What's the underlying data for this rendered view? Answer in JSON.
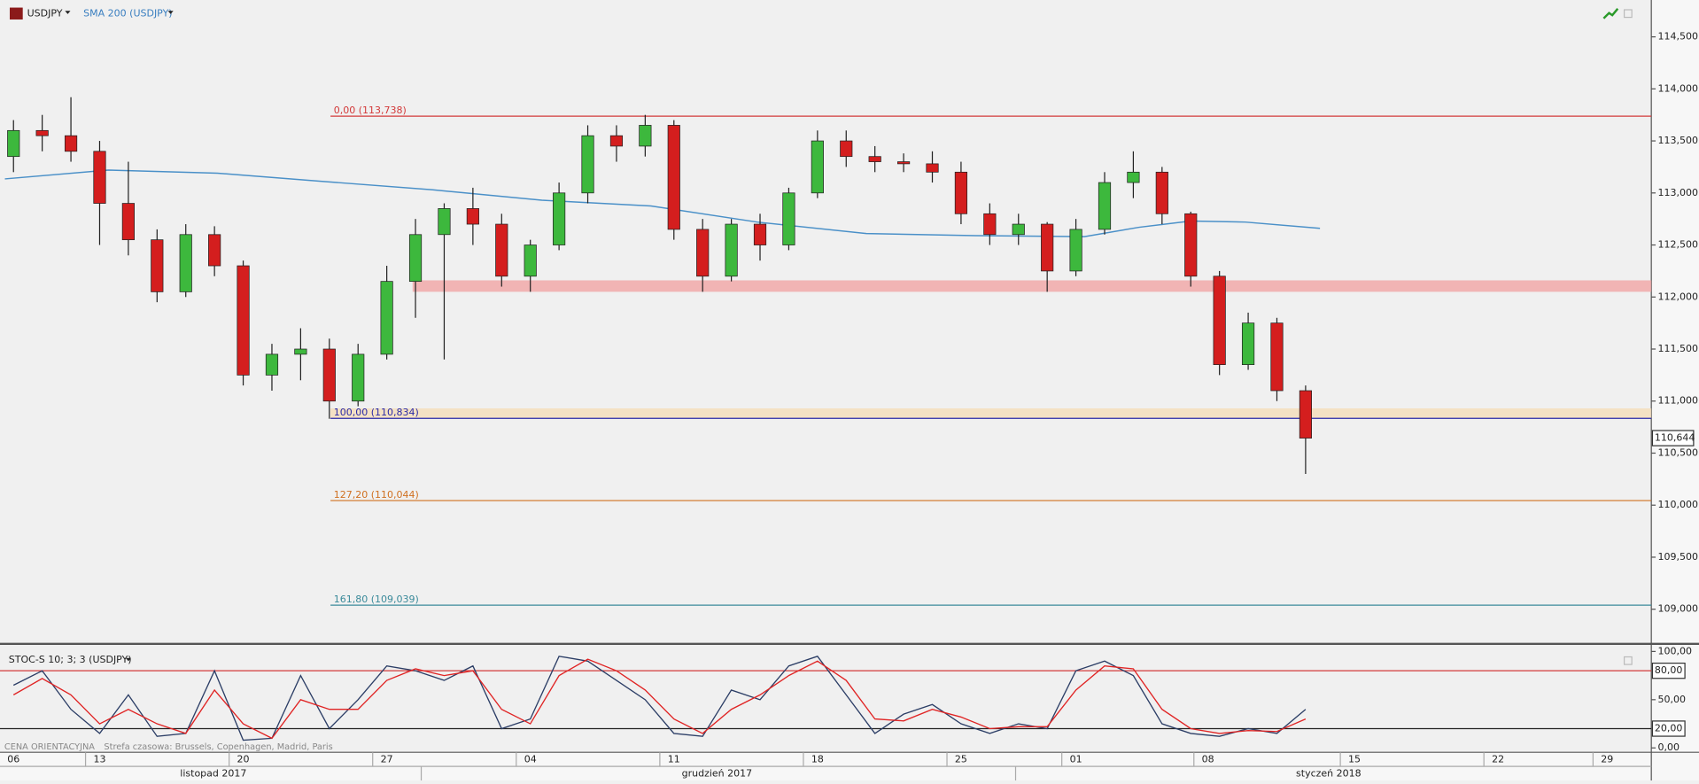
{
  "header": {
    "symbol": "USDJPY",
    "footer": "CENA ORIENTACYJNA",
    "timezone": "Strefa czasowa: Brussels, Copenhagen, Madrid, Paris"
  },
  "chart_data": [
    {
      "type": "candlestick",
      "x": [
        -3,
        -2,
        -1,
        0,
        1,
        2,
        3,
        4,
        5,
        6,
        7,
        8,
        9,
        10,
        11,
        12,
        13,
        14,
        15,
        16,
        17,
        18,
        19,
        20,
        21,
        22,
        23,
        24,
        25,
        26,
        27,
        28,
        29,
        30,
        31,
        32,
        33,
        34,
        35,
        36,
        37,
        38,
        39,
        40,
        41,
        42
      ],
      "open": [
        113.35,
        113.6,
        113.55,
        113.4,
        112.9,
        112.55,
        112.05,
        112.6,
        112.3,
        111.25,
        111.45,
        111.5,
        111.0,
        111.45,
        112.15,
        112.6,
        112.85,
        112.7,
        112.2,
        112.5,
        113.0,
        113.55,
        113.45,
        113.65,
        112.65,
        112.2,
        112.7,
        112.5,
        113.0,
        113.5,
        113.35,
        113.3,
        113.28,
        113.2,
        112.8,
        112.6,
        112.7,
        112.25,
        112.65,
        113.1,
        113.2,
        112.8,
        112.2,
        111.35,
        111.75,
        111.1
      ],
      "high": [
        113.7,
        113.75,
        113.92,
        113.5,
        113.3,
        112.65,
        112.7,
        112.68,
        112.35,
        111.55,
        111.7,
        111.6,
        111.55,
        112.3,
        112.75,
        112.9,
        113.05,
        112.8,
        112.55,
        113.1,
        113.65,
        113.65,
        113.75,
        113.7,
        112.75,
        112.75,
        112.8,
        113.05,
        113.6,
        113.6,
        113.45,
        113.38,
        113.4,
        113.3,
        112.9,
        112.8,
        112.72,
        112.75,
        113.2,
        113.4,
        113.25,
        112.82,
        112.25,
        111.85,
        111.8,
        111.15
      ],
      "low": [
        113.2,
        113.4,
        113.3,
        112.5,
        112.4,
        111.95,
        112.0,
        112.2,
        111.15,
        111.1,
        111.2,
        110.83,
        110.95,
        111.4,
        111.8,
        111.4,
        112.5,
        112.1,
        112.05,
        112.45,
        112.9,
        113.3,
        113.35,
        112.55,
        112.05,
        112.15,
        112.35,
        112.45,
        112.95,
        113.25,
        113.2,
        113.2,
        113.1,
        112.7,
        112.5,
        112.5,
        112.05,
        112.2,
        112.6,
        112.95,
        112.7,
        112.1,
        111.25,
        111.3,
        111.0,
        110.3
      ],
      "close": [
        113.6,
        113.55,
        113.4,
        112.9,
        112.55,
        112.05,
        112.6,
        112.3,
        111.25,
        111.45,
        111.5,
        111.0,
        111.45,
        112.15,
        112.6,
        112.85,
        112.7,
        112.2,
        112.5,
        113.0,
        113.55,
        113.45,
        113.65,
        112.65,
        112.2,
        112.7,
        112.5,
        113.0,
        113.5,
        113.35,
        113.3,
        113.28,
        113.2,
        112.8,
        112.6,
        112.7,
        112.25,
        112.65,
        113.1,
        113.2,
        112.8,
        112.2,
        111.35,
        111.75,
        111.1,
        110.644
      ],
      "up_color": "#3db83d",
      "down_color": "#d41e1e",
      "xlim": [
        -3.47,
        54.04
      ],
      "xticks": [
        {
          "value": -3,
          "label": "06"
        },
        {
          "value": 0,
          "label": "13"
        },
        {
          "value": 5,
          "label": "20"
        },
        {
          "value": 10,
          "label": "27"
        },
        {
          "value": 15,
          "label": "04"
        },
        {
          "value": 20,
          "label": "11"
        },
        {
          "value": 25,
          "label": "18"
        },
        {
          "value": 30,
          "label": "25"
        },
        {
          "value": 34,
          "label": "01"
        },
        {
          "value": 38.6,
          "label": "08"
        },
        {
          "value": 43.7,
          "label": "15"
        },
        {
          "value": 48.7,
          "label": "22"
        },
        {
          "value": 52.5,
          "label": "29"
        }
      ],
      "month_labels": [
        {
          "value": 3.96,
          "label": "listopad 2017"
        },
        {
          "value": 21.5,
          "label": "grudzień 2017"
        },
        {
          "value": 42.8,
          "label": "styczeń 2018"
        }
      ],
      "month_boundaries": [
        11.2,
        31.9
      ],
      "ylim": [
        108.667,
        114.854
      ],
      "yticks": [
        {
          "value": 114.5,
          "label": "114,500"
        },
        {
          "value": 114,
          "label": "114,000"
        },
        {
          "value": 113.5,
          "label": "113,500"
        },
        {
          "value": 113,
          "label": "113,000"
        },
        {
          "value": 112.5,
          "label": "112,500"
        },
        {
          "value": 112,
          "label": "112,000"
        },
        {
          "value": 111.5,
          "label": "111,500"
        },
        {
          "value": 111,
          "label": "111,000"
        },
        {
          "value": 110.5,
          "label": "110,500"
        },
        {
          "value": 110,
          "label": "110,000"
        },
        {
          "value": 109.5,
          "label": "109,500"
        },
        {
          "value": 109,
          "label": "109,000"
        }
      ],
      "sma": {
        "name": "SMA 200 (USDJPY)",
        "color": "#4a90c8",
        "x": [
          -3.3,
          0.3,
          4.1,
          7.8,
          11.6,
          15.4,
          19.2,
          22.9,
          26.7,
          30.5,
          34.3,
          36.2,
          38,
          39.9,
          42.5
        ],
        "values": [
          113.135,
          113.22,
          113.19,
          113.11,
          113.03,
          112.93,
          112.875,
          112.72,
          112.61,
          112.59,
          112.58,
          112.67,
          112.73,
          112.72,
          112.66
        ]
      },
      "levels": [
        {
          "label": "0,00 (113,738)",
          "value": 113.738,
          "start": 8.04,
          "color": "#d33a3a"
        },
        {
          "label": "100,00 (110,834)",
          "value": 110.834,
          "start": 8.04,
          "color": "#2a2aa8"
        },
        {
          "label": "127,20 (110,044)",
          "value": 110.044,
          "start": 8.04,
          "color": "#d07020"
        },
        {
          "label": "161,80 (109,039)",
          "value": 109.039,
          "start": 8.04,
          "color": "#3a8a9a"
        }
      ],
      "zones": [
        {
          "low": 112.05,
          "high": 112.16,
          "start": 10.9,
          "color": "#f2a0a0"
        },
        {
          "low": 110.834,
          "high": 110.93,
          "start": 8.04,
          "color": "#f5dcb5"
        }
      ],
      "last_price": {
        "value": 110.644,
        "label": "110,644"
      }
    },
    {
      "type": "line",
      "title": "STOC-S 10; 3; 3 (USDJPY)",
      "x": [
        -3,
        -2,
        -1,
        0,
        1,
        2,
        3,
        4,
        5,
        6,
        7,
        8,
        9,
        10,
        11,
        12,
        13,
        14,
        15,
        16,
        17,
        18,
        19,
        20,
        21,
        22,
        23,
        24,
        25,
        26,
        27,
        28,
        29,
        30,
        31,
        32,
        33,
        34,
        35,
        36,
        37,
        38,
        39,
        40,
        41,
        42
      ],
      "series": [
        {
          "color": "#2c3e66",
          "values": [
            65,
            80,
            40,
            15,
            55,
            12,
            15,
            80,
            8,
            10,
            75,
            20,
            50,
            85,
            80,
            70,
            85,
            20,
            30,
            95,
            90,
            70,
            50,
            15,
            12,
            60,
            50,
            85,
            95,
            55,
            15,
            35,
            45,
            25,
            15,
            25,
            20,
            80,
            90,
            75,
            25,
            15,
            12,
            20,
            15,
            40
          ]
        },
        {
          "color": "#e02424",
          "values": [
            55,
            72,
            55,
            25,
            40,
            25,
            15,
            60,
            25,
            10,
            50,
            40,
            40,
            70,
            82,
            75,
            80,
            40,
            25,
            75,
            92,
            80,
            60,
            30,
            15,
            40,
            55,
            75,
            90,
            70,
            30,
            28,
            40,
            32,
            20,
            22,
            22,
            60,
            85,
            82,
            40,
            20,
            15,
            18,
            17,
            30
          ]
        }
      ],
      "xlim": [
        -3.47,
        54.04
      ],
      "ylim": [
        -3.4,
        104.5
      ],
      "yticks": [
        {
          "value": 100,
          "label": "100,00"
        },
        {
          "value": 50,
          "label": "50,00"
        },
        {
          "value": 0,
          "label": "0,00"
        }
      ],
      "levels": [
        {
          "value": 80,
          "label": "80,00",
          "color": "#d33a3a"
        },
        {
          "value": 20,
          "label": "20,00",
          "color": "#222222"
        }
      ]
    }
  ]
}
